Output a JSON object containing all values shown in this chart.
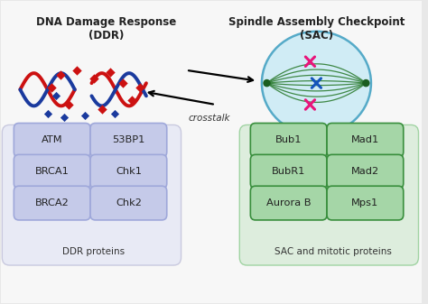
{
  "bg_color": "#f0f0f0",
  "title_left": "DNA Damage Response\n(DDR)",
  "title_right": "Spindle Assembly Checkpoint\n(SAC)",
  "ddr_proteins": [
    [
      "ATM",
      "53BP1"
    ],
    [
      "BRCA1",
      "Chk1"
    ],
    [
      "BRCA2",
      "Chk2"
    ]
  ],
  "sac_proteins": [
    [
      "Bub1",
      "Mad1"
    ],
    [
      "BubR1",
      "Mad2"
    ],
    [
      "Aurora B",
      "Mps1"
    ]
  ],
  "ddr_box_color": "#c5cae9",
  "ddr_box_edge": "#9fa8da",
  "sac_box_color": "#a5d6a7",
  "sac_box_edge": "#388e3c",
  "ddr_label": "DDR proteins",
  "sac_label": "SAC and mitotic proteins",
  "crosstalk_label": "crosstalk",
  "outer_bg": "#e8e8e8",
  "card_bg": "#f5f5f5",
  "red_frag_x": [
    1.4,
    1.8,
    2.2,
    2.6,
    2.9,
    1.6,
    3.1,
    2.4,
    1.2,
    3.3
  ],
  "red_frag_y": [
    5.3,
    5.4,
    5.2,
    5.35,
    5.1,
    4.6,
    4.7,
    4.5,
    5.0,
    5.0
  ],
  "blue_frag_x": [
    1.1,
    1.5,
    2.0,
    2.7,
    1.3
  ],
  "blue_frag_y": [
    4.4,
    4.3,
    4.35,
    4.4,
    4.8
  ]
}
